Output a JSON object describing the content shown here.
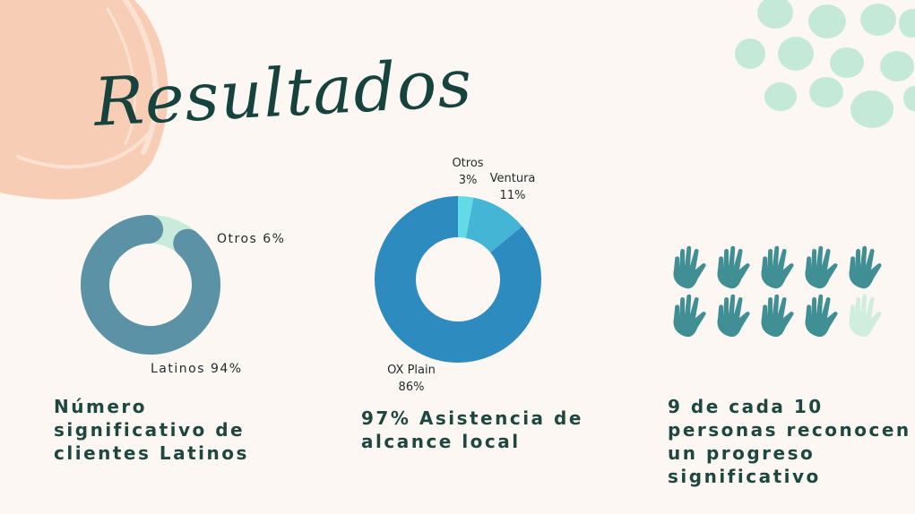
{
  "title": "Resultados",
  "colors": {
    "background": "#fdf7f3",
    "peach": "#f8cdb6",
    "mint": "#c5e9d9",
    "teal_dark": "#16433d",
    "hand_filled": "#3f8f95",
    "hand_empty": "#cfeedd"
  },
  "chart_data": [
    {
      "type": "pie",
      "donut": true,
      "slices": [
        {
          "label": "Latinos 94%",
          "value": 94,
          "color": "#5b92a6"
        },
        {
          "label": "Otros 6%",
          "value": 6,
          "color": "#c9ebdb"
        }
      ],
      "caption": "Número\nsignificativo de\nclientes Latinos"
    },
    {
      "type": "pie",
      "donut": true,
      "slices": [
        {
          "label": "OX Plain",
          "pct": "86%",
          "value": 86,
          "color": "#2e8bbf"
        },
        {
          "label": "Otros",
          "pct": "3%",
          "value": 3,
          "color": "#62dbe6"
        },
        {
          "label": "Ventura",
          "pct": "11%",
          "value": 11,
          "color": "#45b5d6"
        }
      ],
      "caption": "97% Asistencia de\nalcance local"
    },
    {
      "type": "pictograph",
      "icon": "hand-icon",
      "filled": 9,
      "total": 10,
      "caption": "9 de cada 10\npersonas reconocen\nun progreso\nsignificativo"
    }
  ]
}
